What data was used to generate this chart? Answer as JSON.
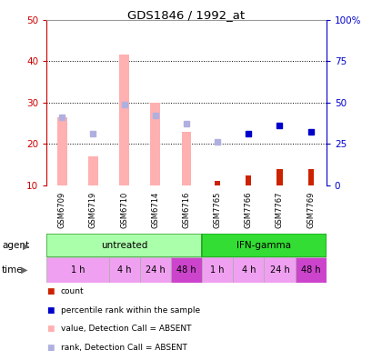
{
  "title": "GDS1846 / 1992_at",
  "samples": [
    "GSM6709",
    "GSM6719",
    "GSM6710",
    "GSM6714",
    "GSM6716",
    "GSM7765",
    "GSM7766",
    "GSM7767",
    "GSM7769"
  ],
  "pink_bars": [
    26.5,
    17.0,
    41.5,
    30.0,
    23.0,
    null,
    null,
    null,
    null
  ],
  "lavender_dots_left": [
    26.5,
    22.5,
    29.5,
    27.0,
    25.0,
    20.5,
    null,
    null,
    null
  ],
  "red_bars": [
    null,
    null,
    null,
    null,
    null,
    11.0,
    12.5,
    14.0,
    14.0
  ],
  "blue_dots_left": [
    null,
    null,
    null,
    null,
    null,
    null,
    22.5,
    24.5,
    23.0
  ],
  "left_ylim": [
    10,
    50
  ],
  "right_ylim": [
    0,
    100
  ],
  "left_yticks": [
    10,
    20,
    30,
    40,
    50
  ],
  "right_yticks": [
    0,
    25,
    50,
    75,
    100
  ],
  "right_yticklabels": [
    "0",
    "25",
    "50",
    "75",
    "100%"
  ],
  "left_ycolor": "#cc0000",
  "right_ycolor": "#0000cc",
  "time_colors_light": "#f0a0f0",
  "time_colors_dark": "#cc44cc",
  "agent_color_light": "#aaffaa",
  "agent_color_dark": "#33dd33",
  "pink_bar_color": "#ffb0b0",
  "red_bar_color": "#cc2200",
  "lavender_dot_color": "#b0b0e0",
  "blue_dot_color": "#0000cc",
  "sample_bg_color": "#c8c8c8",
  "time_spans_raw": [
    [
      0,
      1,
      "1 h",
      false
    ],
    [
      2,
      2,
      "4 h",
      false
    ],
    [
      3,
      3,
      "24 h",
      false
    ],
    [
      4,
      4,
      "48 h",
      true
    ],
    [
      5,
      5,
      "1 h",
      false
    ],
    [
      6,
      6,
      "4 h",
      false
    ],
    [
      7,
      7,
      "24 h",
      false
    ],
    [
      8,
      8,
      "48 h",
      true
    ]
  ]
}
